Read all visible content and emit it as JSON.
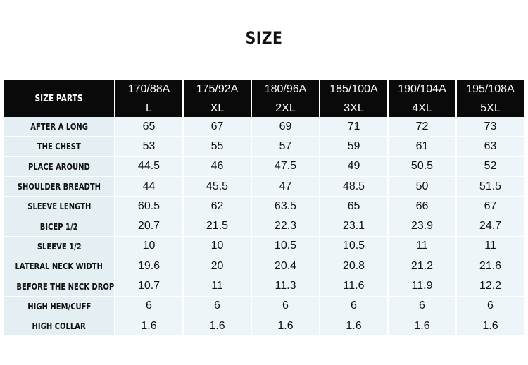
{
  "title": "SIZE",
  "corner_label": "SIZE PARTS",
  "heights": [
    "170/88A",
    "175/92A",
    "180/96A",
    "185/100A",
    "190/104A",
    "195/108A"
  ],
  "sizes": [
    "L",
    "XL",
    "2XL",
    "3XL",
    "4XL",
    "5XL"
  ],
  "rows": [
    {
      "label": "AFTER A LONG",
      "values": [
        "65",
        "67",
        "69",
        "71",
        "72",
        "73"
      ]
    },
    {
      "label": "THE CHEST",
      "values": [
        "53",
        "55",
        "57",
        "59",
        "61",
        "63"
      ]
    },
    {
      "label": "PLACE AROUND",
      "values": [
        "44.5",
        "46",
        "47.5",
        "49",
        "50.5",
        "52"
      ]
    },
    {
      "label": "SHOULDER BREADTH",
      "values": [
        "44",
        "45.5",
        "47",
        "48.5",
        "50",
        "51.5"
      ]
    },
    {
      "label": "SLEEVE LENGTH",
      "values": [
        "60.5",
        "62",
        "63.5",
        "65",
        "66",
        "67"
      ]
    },
    {
      "label": "BICEP 1/2",
      "values": [
        "20.7",
        "21.5",
        "22.3",
        "23.1",
        "23.9",
        "24.7"
      ]
    },
    {
      "label": "SLEEVE 1/2",
      "values": [
        "10",
        "10",
        "10.5",
        "10.5",
        "11",
        "11"
      ]
    },
    {
      "label": "LATERAL NECK WIDTH",
      "values": [
        "19.6",
        "20",
        "20.4",
        "20.8",
        "21.2",
        "21.6"
      ]
    },
    {
      "label": "BEFORE THE NECK DROP",
      "values": [
        "10.7",
        "11",
        "11.3",
        "11.6",
        "11.9",
        "12.2"
      ]
    },
    {
      "label": "HIGH HEM/CUFF",
      "values": [
        "6",
        "6",
        "6",
        "6",
        "6",
        "6"
      ]
    },
    {
      "label": "HIGH COLLAR",
      "values": [
        "1.6",
        "1.6",
        "1.6",
        "1.6",
        "1.6",
        "1.6"
      ]
    }
  ]
}
